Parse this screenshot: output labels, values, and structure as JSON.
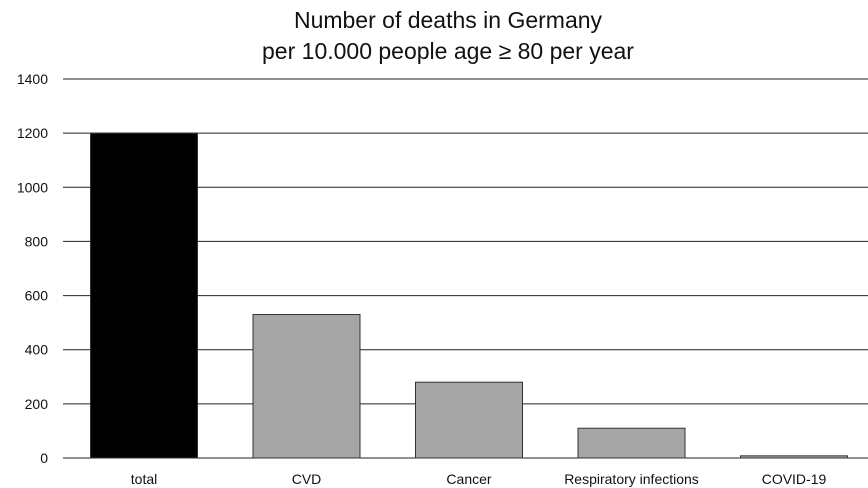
{
  "chart_data": {
    "type": "bar",
    "title_lines": [
      "Number of deaths in Germany",
      "per 10.000 people age ≥ 80 per year"
    ],
    "xlabel": "",
    "ylabel": "",
    "categories": [
      "total",
      "CVD",
      "Cancer",
      "Respiratory infections",
      "COVID-19"
    ],
    "values": [
      1200,
      530,
      280,
      110,
      8
    ],
    "bar_colors": [
      "#000000",
      "#a6a6a6",
      "#a6a6a6",
      "#a6a6a6",
      "#a6a6a6"
    ],
    "ylim": [
      0,
      1400
    ],
    "yticks": [
      "0",
      "200",
      "400",
      "600",
      "800",
      "1000",
      "1200",
      "1400"
    ],
    "grid": true,
    "legend": "none"
  }
}
